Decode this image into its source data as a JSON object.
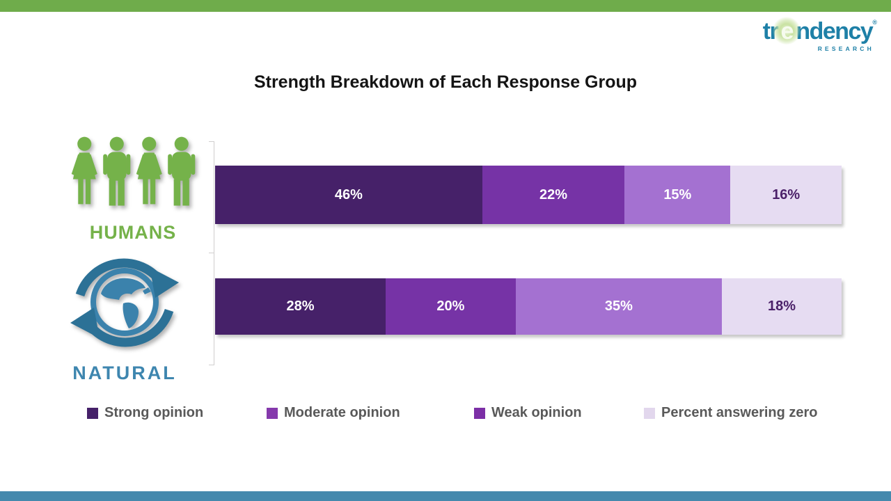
{
  "page": {
    "top_strip_color": "#6FAC4B",
    "bottom_strip_color": "#4589AD"
  },
  "logo": {
    "text_pre": "tr",
    "text_e": "e",
    "text_post": "ndency",
    "registered_mark": "®",
    "subtext": "RESEARCH",
    "color": "#1E80A7",
    "burst_color": "#C9E2A2"
  },
  "rows": [
    {
      "label": "HUMANS",
      "icon": "people-icon",
      "label_color": "#75B24A"
    },
    {
      "label": "NATURAL",
      "icon": "globe-recycle-icon",
      "label_color": "#3E86AF"
    }
  ],
  "chart_data": {
    "type": "bar",
    "subtype": "horizontal-stacked",
    "title": "Strength Breakdown of Each Response Group",
    "categories": [
      "HUMANS",
      "NATURAL"
    ],
    "series": [
      {
        "name": "Strong opinion",
        "values": [
          46,
          28
        ],
        "color": "#462169",
        "legend_color": "#452169",
        "label_color": "#FFFFFF"
      },
      {
        "name": "Moderate opinion",
        "values": [
          22,
          20
        ],
        "color": "#7633A6",
        "legend_color": "#8539AC",
        "label_color": "#FFFFFF"
      },
      {
        "name": "Weak opinion",
        "values": [
          15,
          35
        ],
        "color": "#A471D1",
        "legend_color": "#7C2FA6",
        "label_color": "#FFFFFF"
      },
      {
        "name": "Percent answering zero",
        "values": [
          16,
          18
        ],
        "color": "#E6DCF2",
        "legend_color": "#E2D7ED",
        "label_color": "#4B2169"
      }
    ],
    "value_label_format": "{v}%",
    "legend_position": "bottom",
    "xlim": [
      0,
      100
    ],
    "grid": false,
    "axis_note": "left axis line with 3 ticks, no x axis labels"
  }
}
